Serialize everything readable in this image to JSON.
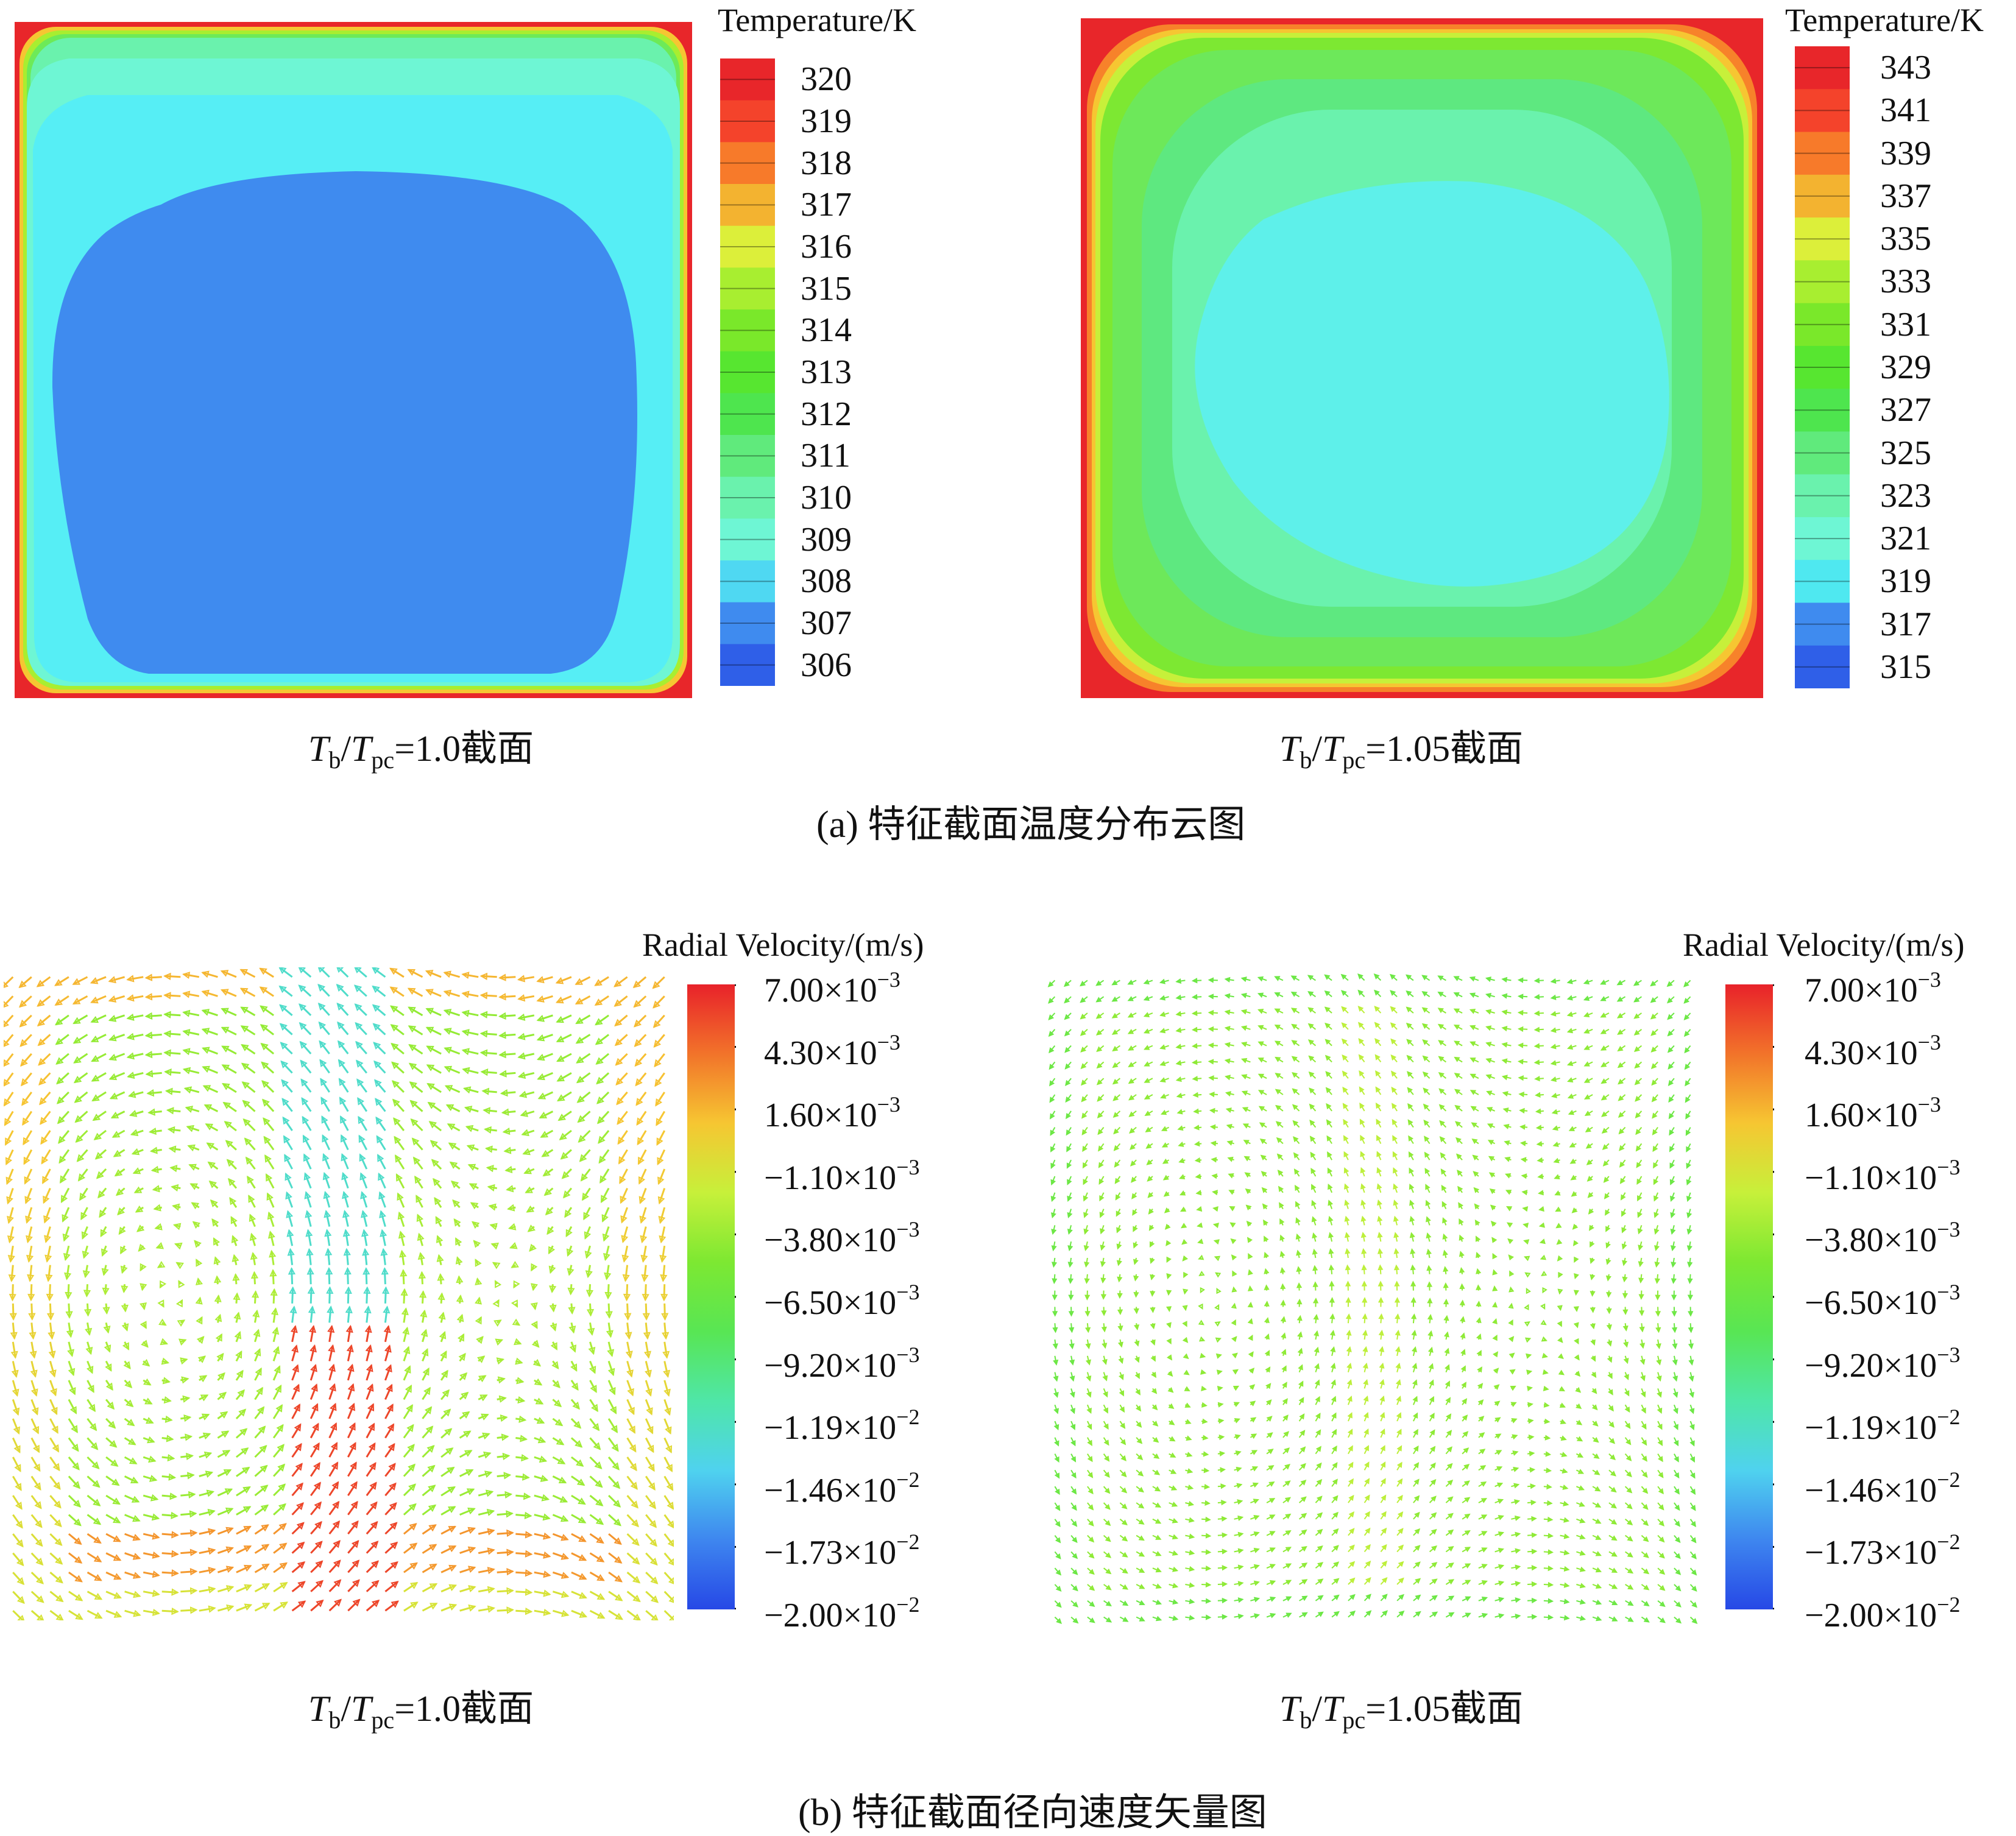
{
  "panel_a": {
    "caption": "(a)  特征截面温度分布云图",
    "left": {
      "legend_title": "Temperature/K",
      "legend_values": [
        "320",
        "319",
        "318",
        "317",
        "316",
        "315",
        "314",
        "313",
        "312",
        "311",
        "310",
        "309",
        "308",
        "307",
        "306"
      ],
      "caption_T": "T",
      "caption_b": "b",
      "caption_pc": "pc",
      "caption_rest": "=1.0截面"
    },
    "right": {
      "legend_title": "Temperature/K",
      "legend_values": [
        "343",
        "341",
        "339",
        "337",
        "335",
        "333",
        "331",
        "329",
        "327",
        "325",
        "323",
        "321",
        "319",
        "317",
        "315"
      ],
      "caption_T": "T",
      "caption_b": "b",
      "caption_pc": "pc",
      "caption_rest": "=1.05截面"
    }
  },
  "panel_b": {
    "caption": "(b)  特征截面径向速度矢量图",
    "left": {
      "legend_title": "Radial Velocity/(m/s)",
      "legend_mantissas": [
        "7.00",
        "4.30",
        "1.60",
        "−1.10",
        "−3.80",
        "−6.50",
        "−9.20",
        "−1.19",
        "−1.46",
        "−1.73",
        "−2.00"
      ],
      "legend_exponents": [
        "−3",
        "−3",
        "−3",
        "−3",
        "−3",
        "−3",
        "−3",
        "−2",
        "−2",
        "−2",
        "−2"
      ],
      "times": "×10",
      "caption_T": "T",
      "caption_b": "b",
      "caption_pc": "pc",
      "caption_rest": "=1.0截面"
    },
    "right": {
      "legend_title": "Radial Velocity/(m/s)",
      "legend_mantissas": [
        "7.00",
        "4.30",
        "1.60",
        "−1.10",
        "−3.80",
        "−6.50",
        "−9.20",
        "−1.19",
        "−1.46",
        "−1.73",
        "−2.00"
      ],
      "legend_exponents": [
        "−3",
        "−3",
        "−3",
        "−3",
        "−3",
        "−3",
        "−3",
        "−2",
        "−2",
        "−2",
        "−2"
      ],
      "times": "×10",
      "caption_T": "T",
      "caption_b": "b",
      "caption_pc": "pc",
      "caption_rest": "=1.05截面"
    }
  },
  "colors": {
    "temp_band_left": [
      "#e8262a",
      "#f4432b",
      "#f77a2a",
      "#f3b330",
      "#dcef3a",
      "#a8ee30",
      "#7ae82a",
      "#57e630",
      "#4ee54e",
      "#60ea7c",
      "#6af2ad",
      "#6ef6d4",
      "#4fd8f2",
      "#3f8bef",
      "#2f5fe8"
    ],
    "temp_band_right": [
      "#e8262a",
      "#f4432b",
      "#f77a2a",
      "#f3b330",
      "#dcef3a",
      "#a8ee30",
      "#7ae82a",
      "#57e630",
      "#4ee54e",
      "#60ea7c",
      "#6af2ad",
      "#6ef6d4",
      "#4fe8f0",
      "#3f8bef",
      "#2f5fe8"
    ],
    "velocity_gradient": [
      "#e8222a",
      "#f2732a",
      "#f6c632",
      "#c7f03a",
      "#7de832",
      "#58e654",
      "#4fe6a8",
      "#4fd2ef",
      "#3e86ef",
      "#2648e6"
    ]
  }
}
